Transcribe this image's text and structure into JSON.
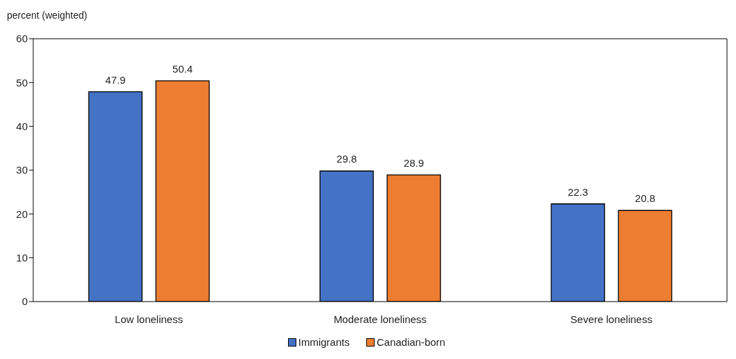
{
  "chart_data": {
    "type": "bar",
    "ylabel": "percent (weighted)",
    "categories": [
      "Low loneliness",
      "Moderate loneliness",
      "Severe loneliness"
    ],
    "series": [
      {
        "name": "Immigrants",
        "color": "#4472c4",
        "values": [
          47.9,
          29.8,
          22.3
        ]
      },
      {
        "name": "Canadian-born",
        "color": "#ed7d31",
        "values": [
          50.4,
          28.9,
          20.8
        ]
      }
    ],
    "ylim": [
      0,
      60
    ],
    "yticks": [
      0,
      10,
      20,
      30,
      40,
      50,
      60
    ],
    "legend": "bottom",
    "data_labels": true
  }
}
